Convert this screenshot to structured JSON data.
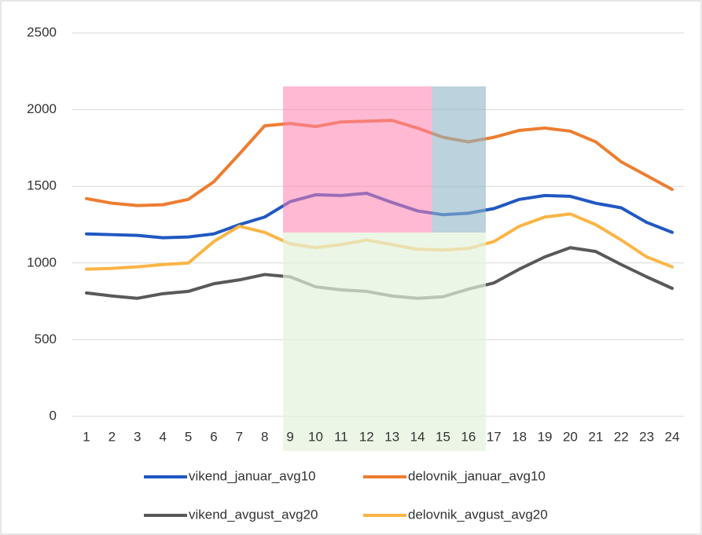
{
  "chart_data": {
    "type": "line",
    "categories": [
      "1",
      "2",
      "3",
      "4",
      "5",
      "6",
      "7",
      "8",
      "9",
      "10",
      "11",
      "12",
      "13",
      "14",
      "15",
      "16",
      "17",
      "18",
      "19",
      "20",
      "21",
      "22",
      "23",
      "24"
    ],
    "series": [
      {
        "name": "vikend_januar_avg10",
        "color": "#2158c2",
        "values": [
          1190,
          1185,
          1180,
          1165,
          1170,
          1190,
          1250,
          1300,
          1400,
          1445,
          1440,
          1455,
          1395,
          1340,
          1315,
          1325,
          1355,
          1415,
          1440,
          1435,
          1390,
          1360,
          1265,
          1200
        ]
      },
      {
        "name": "delovnik_januar_avg10",
        "color": "#ed7d31",
        "values": [
          1420,
          1390,
          1375,
          1380,
          1415,
          1530,
          1710,
          1895,
          1910,
          1890,
          1920,
          1925,
          1930,
          1880,
          1820,
          1790,
          1820,
          1865,
          1880,
          1860,
          1790,
          1660,
          1570,
          1480
        ]
      },
      {
        "name": "vikend_avgust_avg20",
        "color": "#595959",
        "values": [
          805,
          785,
          770,
          800,
          815,
          865,
          890,
          925,
          910,
          845,
          825,
          815,
          785,
          770,
          780,
          830,
          870,
          960,
          1040,
          1100,
          1075,
          990,
          910,
          835
        ]
      },
      {
        "name": "delovnik_avgust_avg20",
        "color": "#fbb545",
        "values": [
          960,
          965,
          975,
          990,
          1000,
          1140,
          1240,
          1200,
          1125,
          1100,
          1120,
          1150,
          1120,
          1090,
          1085,
          1095,
          1140,
          1240,
          1300,
          1320,
          1250,
          1150,
          1040,
          975
        ]
      }
    ],
    "ylim": [
      0,
      2500
    ],
    "yticks": [
      0,
      500,
      1000,
      1500,
      2000,
      2500
    ],
    "grid": true,
    "legend": "bottom"
  }
}
